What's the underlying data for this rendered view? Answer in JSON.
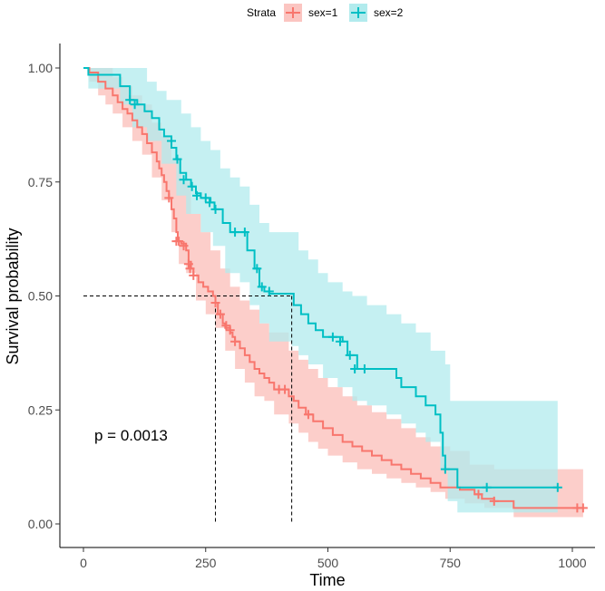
{
  "chart_data": {
    "type": "line",
    "subtype": "kaplan-meier survival curve with confidence bands",
    "xlabel": "Time",
    "ylabel": "Survival probability",
    "xlim": [
      0,
      1022
    ],
    "ylim": [
      0,
      1
    ],
    "x_ticks": [
      0,
      250,
      500,
      750,
      1000
    ],
    "y_ticks": [
      0.0,
      0.25,
      0.5,
      0.75,
      1.0
    ],
    "y_tick_labels": [
      "0.00",
      "0.25",
      "0.50",
      "0.75",
      "1.00"
    ],
    "grid": false,
    "legend": {
      "title": "Strata",
      "placement": "top",
      "entries": [
        "sex=1",
        "sex=2"
      ]
    },
    "annotation": "p = 0.0013",
    "median_survival": [
      {
        "series": "sex=1",
        "time": 270
      },
      {
        "series": "sex=2",
        "time": 426
      }
    ],
    "series": [
      {
        "name": "sex=1",
        "color": "#F8766D",
        "band_color": "#FBC5C1",
        "steps": [
          [
            0,
            1.0
          ],
          [
            12,
            0.99
          ],
          [
            30,
            0.97
          ],
          [
            45,
            0.955
          ],
          [
            60,
            0.94
          ],
          [
            70,
            0.925
          ],
          [
            80,
            0.91
          ],
          [
            90,
            0.9
          ],
          [
            100,
            0.885
          ],
          [
            110,
            0.87
          ],
          [
            120,
            0.855
          ],
          [
            130,
            0.835
          ],
          [
            140,
            0.815
          ],
          [
            150,
            0.795
          ],
          [
            155,
            0.78
          ],
          [
            160,
            0.765
          ],
          [
            165,
            0.75
          ],
          [
            170,
            0.73
          ],
          [
            175,
            0.715
          ],
          [
            180,
            0.69
          ],
          [
            185,
            0.67
          ],
          [
            190,
            0.64
          ],
          [
            193,
            0.62
          ],
          [
            200,
            0.615
          ],
          [
            210,
            0.6
          ],
          [
            215,
            0.575
          ],
          [
            220,
            0.56
          ],
          [
            225,
            0.545
          ],
          [
            235,
            0.53
          ],
          [
            245,
            0.52
          ],
          [
            255,
            0.51
          ],
          [
            265,
            0.5
          ],
          [
            270,
            0.485
          ],
          [
            275,
            0.46
          ],
          [
            285,
            0.44
          ],
          [
            290,
            0.43
          ],
          [
            300,
            0.42
          ],
          [
            305,
            0.41
          ],
          [
            310,
            0.4
          ],
          [
            320,
            0.385
          ],
          [
            330,
            0.37
          ],
          [
            340,
            0.355
          ],
          [
            350,
            0.34
          ],
          [
            360,
            0.33
          ],
          [
            370,
            0.32
          ],
          [
            380,
            0.31
          ],
          [
            390,
            0.295
          ],
          [
            410,
            0.295
          ],
          [
            420,
            0.28
          ],
          [
            430,
            0.27
          ],
          [
            440,
            0.255
          ],
          [
            455,
            0.24
          ],
          [
            470,
            0.225
          ],
          [
            490,
            0.21
          ],
          [
            510,
            0.195
          ],
          [
            530,
            0.18
          ],
          [
            550,
            0.17
          ],
          [
            570,
            0.16
          ],
          [
            590,
            0.15
          ],
          [
            610,
            0.14
          ],
          [
            630,
            0.13
          ],
          [
            650,
            0.12
          ],
          [
            670,
            0.11
          ],
          [
            690,
            0.1
          ],
          [
            710,
            0.09
          ],
          [
            730,
            0.08
          ],
          [
            770,
            0.075
          ],
          [
            800,
            0.065
          ],
          [
            815,
            0.055
          ],
          [
            840,
            0.05
          ],
          [
            880,
            0.035
          ],
          [
            1022,
            0.035
          ]
        ],
        "lower": [
          [
            0,
            1.0
          ],
          [
            12,
            0.97
          ],
          [
            30,
            0.94
          ],
          [
            45,
            0.92
          ],
          [
            60,
            0.9
          ],
          [
            80,
            0.87
          ],
          [
            100,
            0.84
          ],
          [
            120,
            0.81
          ],
          [
            140,
            0.76
          ],
          [
            160,
            0.71
          ],
          [
            180,
            0.64
          ],
          [
            195,
            0.57
          ],
          [
            210,
            0.55
          ],
          [
            230,
            0.49
          ],
          [
            250,
            0.46
          ],
          [
            270,
            0.43
          ],
          [
            290,
            0.38
          ],
          [
            310,
            0.34
          ],
          [
            330,
            0.31
          ],
          [
            350,
            0.28
          ],
          [
            370,
            0.27
          ],
          [
            390,
            0.24
          ],
          [
            420,
            0.22
          ],
          [
            440,
            0.2
          ],
          [
            460,
            0.18
          ],
          [
            480,
            0.165
          ],
          [
            500,
            0.15
          ],
          [
            530,
            0.135
          ],
          [
            560,
            0.12
          ],
          [
            590,
            0.11
          ],
          [
            620,
            0.1
          ],
          [
            650,
            0.09
          ],
          [
            680,
            0.08
          ],
          [
            710,
            0.07
          ],
          [
            740,
            0.055
          ],
          [
            780,
            0.045
          ],
          [
            820,
            0.035
          ],
          [
            880,
            0.015
          ],
          [
            1022,
            0.01
          ]
        ],
        "upper": [
          [
            0,
            1.0
          ],
          [
            12,
            1.0
          ],
          [
            40,
            1.0
          ],
          [
            60,
            0.98
          ],
          [
            80,
            0.96
          ],
          [
            100,
            0.94
          ],
          [
            120,
            0.92
          ],
          [
            140,
            0.88
          ],
          [
            160,
            0.85
          ],
          [
            180,
            0.8
          ],
          [
            200,
            0.75
          ],
          [
            220,
            0.68
          ],
          [
            240,
            0.64
          ],
          [
            260,
            0.6
          ],
          [
            280,
            0.56
          ],
          [
            300,
            0.52
          ],
          [
            320,
            0.49
          ],
          [
            340,
            0.47
          ],
          [
            360,
            0.44
          ],
          [
            380,
            0.42
          ],
          [
            420,
            0.38
          ],
          [
            440,
            0.36
          ],
          [
            460,
            0.34
          ],
          [
            480,
            0.32
          ],
          [
            500,
            0.3
          ],
          [
            530,
            0.28
          ],
          [
            560,
            0.26
          ],
          [
            590,
            0.245
          ],
          [
            620,
            0.23
          ],
          [
            650,
            0.21
          ],
          [
            680,
            0.19
          ],
          [
            710,
            0.17
          ],
          [
            750,
            0.16
          ],
          [
            790,
            0.13
          ],
          [
            840,
            0.12
          ],
          [
            1022,
            0.12
          ]
        ],
        "censored": [
          [
            175,
            0.715
          ],
          [
            190,
            0.62
          ],
          [
            195,
            0.62
          ],
          [
            205,
            0.61
          ],
          [
            215,
            0.57
          ],
          [
            218,
            0.56
          ],
          [
            225,
            0.545
          ],
          [
            270,
            0.485
          ],
          [
            280,
            0.46
          ],
          [
            292,
            0.435
          ],
          [
            300,
            0.425
          ],
          [
            310,
            0.4
          ],
          [
            400,
            0.295
          ],
          [
            412,
            0.295
          ],
          [
            460,
            0.24
          ],
          [
            808,
            0.065
          ],
          [
            840,
            0.05
          ],
          [
            1010,
            0.035
          ],
          [
            1022,
            0.035
          ]
        ]
      },
      {
        "name": "sex=2",
        "color": "#00BFC4",
        "band_color": "#B2EBED",
        "steps": [
          [
            0,
            1.0
          ],
          [
            10,
            0.985
          ],
          [
            30,
            0.985
          ],
          [
            60,
            0.985
          ],
          [
            75,
            0.96
          ],
          [
            95,
            0.93
          ],
          [
            110,
            0.92
          ],
          [
            125,
            0.905
          ],
          [
            140,
            0.89
          ],
          [
            155,
            0.865
          ],
          [
            165,
            0.85
          ],
          [
            180,
            0.825
          ],
          [
            190,
            0.8
          ],
          [
            198,
            0.77
          ],
          [
            210,
            0.755
          ],
          [
            220,
            0.74
          ],
          [
            230,
            0.725
          ],
          [
            240,
            0.715
          ],
          [
            260,
            0.705
          ],
          [
            268,
            0.69
          ],
          [
            285,
            0.66
          ],
          [
            300,
            0.64
          ],
          [
            320,
            0.64
          ],
          [
            335,
            0.6
          ],
          [
            350,
            0.56
          ],
          [
            360,
            0.52
          ],
          [
            370,
            0.51
          ],
          [
            380,
            0.505
          ],
          [
            390,
            0.505
          ],
          [
            426,
            0.505
          ],
          [
            430,
            0.48
          ],
          [
            445,
            0.46
          ],
          [
            460,
            0.44
          ],
          [
            475,
            0.425
          ],
          [
            490,
            0.41
          ],
          [
            530,
            0.4
          ],
          [
            540,
            0.37
          ],
          [
            560,
            0.34
          ],
          [
            580,
            0.34
          ],
          [
            640,
            0.32
          ],
          [
            650,
            0.3
          ],
          [
            680,
            0.28
          ],
          [
            700,
            0.26
          ],
          [
            720,
            0.24
          ],
          [
            730,
            0.2
          ],
          [
            735,
            0.15
          ],
          [
            740,
            0.12
          ],
          [
            750,
            0.12
          ],
          [
            765,
            0.08
          ],
          [
            970,
            0.08
          ]
        ],
        "lower": [
          [
            0,
            1.0
          ],
          [
            10,
            0.955
          ],
          [
            40,
            0.955
          ],
          [
            75,
            0.92
          ],
          [
            100,
            0.87
          ],
          [
            130,
            0.84
          ],
          [
            160,
            0.79
          ],
          [
            190,
            0.72
          ],
          [
            210,
            0.68
          ],
          [
            240,
            0.64
          ],
          [
            265,
            0.61
          ],
          [
            290,
            0.55
          ],
          [
            320,
            0.53
          ],
          [
            340,
            0.48
          ],
          [
            360,
            0.44
          ],
          [
            380,
            0.4
          ],
          [
            400,
            0.4
          ],
          [
            426,
            0.39
          ],
          [
            440,
            0.37
          ],
          [
            460,
            0.35
          ],
          [
            490,
            0.32
          ],
          [
            520,
            0.3
          ],
          [
            550,
            0.27
          ],
          [
            580,
            0.26
          ],
          [
            620,
            0.24
          ],
          [
            650,
            0.22
          ],
          [
            680,
            0.2
          ],
          [
            700,
            0.18
          ],
          [
            730,
            0.12
          ],
          [
            745,
            0.05
          ],
          [
            765,
            0.025
          ],
          [
            970,
            0.025
          ]
        ],
        "upper": [
          [
            0,
            1.0
          ],
          [
            100,
            1.0
          ],
          [
            130,
            0.97
          ],
          [
            150,
            0.95
          ],
          [
            170,
            0.93
          ],
          [
            200,
            0.9
          ],
          [
            220,
            0.87
          ],
          [
            240,
            0.84
          ],
          [
            260,
            0.82
          ],
          [
            280,
            0.78
          ],
          [
            300,
            0.76
          ],
          [
            320,
            0.74
          ],
          [
            340,
            0.7
          ],
          [
            360,
            0.66
          ],
          [
            380,
            0.64
          ],
          [
            400,
            0.64
          ],
          [
            426,
            0.64
          ],
          [
            440,
            0.6
          ],
          [
            460,
            0.58
          ],
          [
            480,
            0.55
          ],
          [
            500,
            0.53
          ],
          [
            530,
            0.51
          ],
          [
            550,
            0.5
          ],
          [
            580,
            0.48
          ],
          [
            620,
            0.46
          ],
          [
            650,
            0.44
          ],
          [
            680,
            0.42
          ],
          [
            710,
            0.38
          ],
          [
            740,
            0.35
          ],
          [
            750,
            0.27
          ],
          [
            970,
            0.27
          ]
        ],
        "censored": [
          [
            95,
            0.93
          ],
          [
            105,
            0.92
          ],
          [
            180,
            0.84
          ],
          [
            192,
            0.8
          ],
          [
            205,
            0.755
          ],
          [
            222,
            0.74
          ],
          [
            232,
            0.72
          ],
          [
            250,
            0.715
          ],
          [
            258,
            0.705
          ],
          [
            270,
            0.69
          ],
          [
            310,
            0.64
          ],
          [
            330,
            0.64
          ],
          [
            355,
            0.56
          ],
          [
            365,
            0.52
          ],
          [
            380,
            0.51
          ],
          [
            510,
            0.41
          ],
          [
            525,
            0.4
          ],
          [
            545,
            0.37
          ],
          [
            555,
            0.34
          ],
          [
            575,
            0.34
          ],
          [
            740,
            0.12
          ],
          [
            825,
            0.08
          ],
          [
            970,
            0.08
          ]
        ]
      }
    ]
  }
}
